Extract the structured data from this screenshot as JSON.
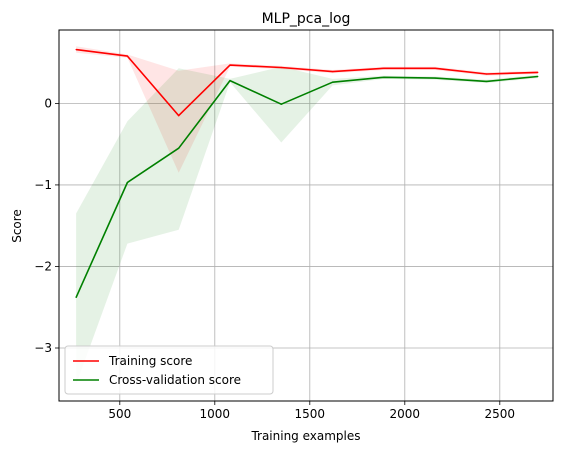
{
  "chart_data": {
    "type": "line",
    "title": "MLP_pca_log",
    "xlabel": "Training examples",
    "ylabel": "Score",
    "xlim": [
      180,
      2780
    ],
    "ylim": [
      -3.65,
      0.9
    ],
    "xticks": [
      500,
      1000,
      1500,
      2000,
      2500
    ],
    "xtick_labels": [
      "500",
      "1000",
      "1500",
      "2000",
      "2500"
    ],
    "yticks": [
      0,
      -1,
      -2,
      -3
    ],
    "ytick_labels": [
      "0",
      "−1",
      "−2",
      "−3"
    ],
    "grid": true,
    "legend_position": "lower-left",
    "x": [
      270,
      540,
      810,
      1080,
      1350,
      1620,
      1890,
      2160,
      2430,
      2700
    ],
    "series": [
      {
        "name": "Training score",
        "color": "#ff0000",
        "values": [
          0.66,
          0.58,
          -0.15,
          0.47,
          0.44,
          0.39,
          0.43,
          0.43,
          0.36,
          0.38
        ],
        "band_lower": [
          0.62,
          0.56,
          -0.85,
          0.45,
          0.42,
          0.37,
          0.41,
          0.41,
          0.34,
          0.36
        ],
        "band_upper": [
          0.7,
          0.6,
          0.4,
          0.49,
          0.46,
          0.41,
          0.45,
          0.45,
          0.38,
          0.4
        ]
      },
      {
        "name": "Cross-validation score",
        "color": "#008000",
        "values": [
          -2.38,
          -0.97,
          -0.55,
          0.28,
          -0.01,
          0.26,
          0.32,
          0.31,
          0.27,
          0.33
        ],
        "band_lower": [
          -3.45,
          -1.72,
          -1.55,
          0.26,
          -0.48,
          0.22,
          0.3,
          0.29,
          0.25,
          0.31
        ],
        "band_upper": [
          -1.35,
          -0.22,
          0.43,
          0.3,
          0.45,
          0.3,
          0.34,
          0.33,
          0.29,
          0.35
        ]
      }
    ]
  }
}
